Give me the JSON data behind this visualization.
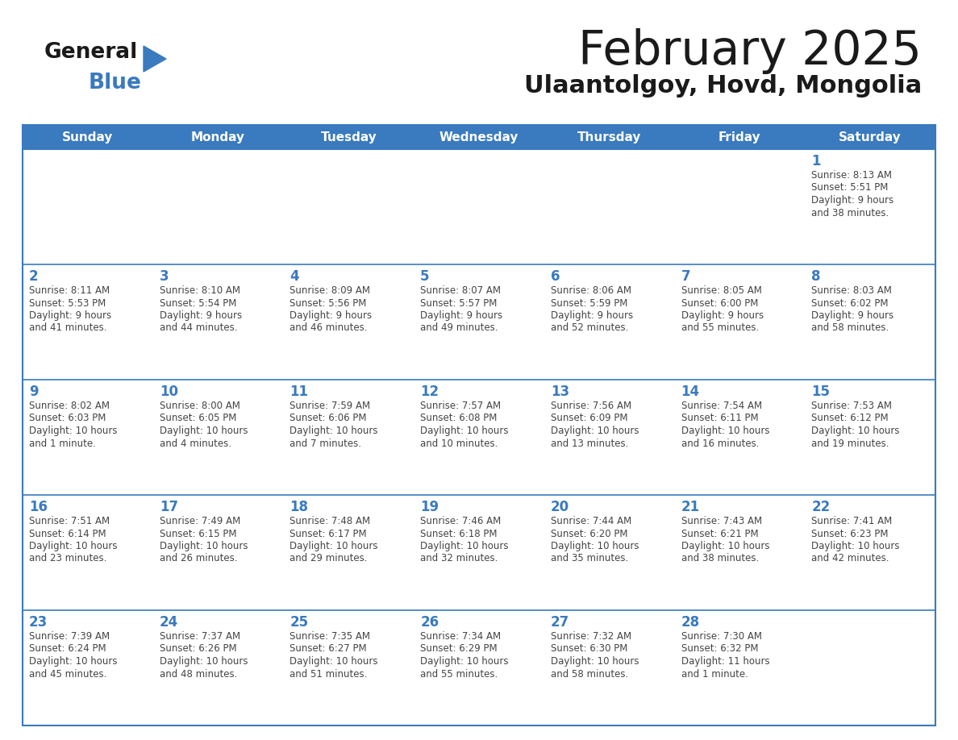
{
  "title": "February 2025",
  "subtitle": "Ulaantolgoy, Hovd, Mongolia",
  "days_of_week": [
    "Sunday",
    "Monday",
    "Tuesday",
    "Wednesday",
    "Thursday",
    "Friday",
    "Saturday"
  ],
  "header_bg": "#3a7abf",
  "header_text": "#ffffff",
  "cell_bg_odd": "#eef2f7",
  "cell_bg_even": "#ffffff",
  "separator_color": "#3a7abf",
  "day_number_color": "#3a7abf",
  "info_color": "#444444",
  "title_color": "#1a1a1a",
  "subtitle_color": "#1a1a1a",
  "logo_general_color": "#1a1a1a",
  "logo_blue_color": "#3a7abf",
  "weeks": [
    [
      {
        "day": null,
        "sunrise": null,
        "sunset": null,
        "daylight": null
      },
      {
        "day": null,
        "sunrise": null,
        "sunset": null,
        "daylight": null
      },
      {
        "day": null,
        "sunrise": null,
        "sunset": null,
        "daylight": null
      },
      {
        "day": null,
        "sunrise": null,
        "sunset": null,
        "daylight": null
      },
      {
        "day": null,
        "sunrise": null,
        "sunset": null,
        "daylight": null
      },
      {
        "day": null,
        "sunrise": null,
        "sunset": null,
        "daylight": null
      },
      {
        "day": 1,
        "sunrise": "8:13 AM",
        "sunset": "5:51 PM",
        "daylight": "9 hours\nand 38 minutes."
      }
    ],
    [
      {
        "day": 2,
        "sunrise": "8:11 AM",
        "sunset": "5:53 PM",
        "daylight": "9 hours\nand 41 minutes."
      },
      {
        "day": 3,
        "sunrise": "8:10 AM",
        "sunset": "5:54 PM",
        "daylight": "9 hours\nand 44 minutes."
      },
      {
        "day": 4,
        "sunrise": "8:09 AM",
        "sunset": "5:56 PM",
        "daylight": "9 hours\nand 46 minutes."
      },
      {
        "day": 5,
        "sunrise": "8:07 AM",
        "sunset": "5:57 PM",
        "daylight": "9 hours\nand 49 minutes."
      },
      {
        "day": 6,
        "sunrise": "8:06 AM",
        "sunset": "5:59 PM",
        "daylight": "9 hours\nand 52 minutes."
      },
      {
        "day": 7,
        "sunrise": "8:05 AM",
        "sunset": "6:00 PM",
        "daylight": "9 hours\nand 55 minutes."
      },
      {
        "day": 8,
        "sunrise": "8:03 AM",
        "sunset": "6:02 PM",
        "daylight": "9 hours\nand 58 minutes."
      }
    ],
    [
      {
        "day": 9,
        "sunrise": "8:02 AM",
        "sunset": "6:03 PM",
        "daylight": "10 hours\nand 1 minute."
      },
      {
        "day": 10,
        "sunrise": "8:00 AM",
        "sunset": "6:05 PM",
        "daylight": "10 hours\nand 4 minutes."
      },
      {
        "day": 11,
        "sunrise": "7:59 AM",
        "sunset": "6:06 PM",
        "daylight": "10 hours\nand 7 minutes."
      },
      {
        "day": 12,
        "sunrise": "7:57 AM",
        "sunset": "6:08 PM",
        "daylight": "10 hours\nand 10 minutes."
      },
      {
        "day": 13,
        "sunrise": "7:56 AM",
        "sunset": "6:09 PM",
        "daylight": "10 hours\nand 13 minutes."
      },
      {
        "day": 14,
        "sunrise": "7:54 AM",
        "sunset": "6:11 PM",
        "daylight": "10 hours\nand 16 minutes."
      },
      {
        "day": 15,
        "sunrise": "7:53 AM",
        "sunset": "6:12 PM",
        "daylight": "10 hours\nand 19 minutes."
      }
    ],
    [
      {
        "day": 16,
        "sunrise": "7:51 AM",
        "sunset": "6:14 PM",
        "daylight": "10 hours\nand 23 minutes."
      },
      {
        "day": 17,
        "sunrise": "7:49 AM",
        "sunset": "6:15 PM",
        "daylight": "10 hours\nand 26 minutes."
      },
      {
        "day": 18,
        "sunrise": "7:48 AM",
        "sunset": "6:17 PM",
        "daylight": "10 hours\nand 29 minutes."
      },
      {
        "day": 19,
        "sunrise": "7:46 AM",
        "sunset": "6:18 PM",
        "daylight": "10 hours\nand 32 minutes."
      },
      {
        "day": 20,
        "sunrise": "7:44 AM",
        "sunset": "6:20 PM",
        "daylight": "10 hours\nand 35 minutes."
      },
      {
        "day": 21,
        "sunrise": "7:43 AM",
        "sunset": "6:21 PM",
        "daylight": "10 hours\nand 38 minutes."
      },
      {
        "day": 22,
        "sunrise": "7:41 AM",
        "sunset": "6:23 PM",
        "daylight": "10 hours\nand 42 minutes."
      }
    ],
    [
      {
        "day": 23,
        "sunrise": "7:39 AM",
        "sunset": "6:24 PM",
        "daylight": "10 hours\nand 45 minutes."
      },
      {
        "day": 24,
        "sunrise": "7:37 AM",
        "sunset": "6:26 PM",
        "daylight": "10 hours\nand 48 minutes."
      },
      {
        "day": 25,
        "sunrise": "7:35 AM",
        "sunset": "6:27 PM",
        "daylight": "10 hours\nand 51 minutes."
      },
      {
        "day": 26,
        "sunrise": "7:34 AM",
        "sunset": "6:29 PM",
        "daylight": "10 hours\nand 55 minutes."
      },
      {
        "day": 27,
        "sunrise": "7:32 AM",
        "sunset": "6:30 PM",
        "daylight": "10 hours\nand 58 minutes."
      },
      {
        "day": 28,
        "sunrise": "7:30 AM",
        "sunset": "6:32 PM",
        "daylight": "11 hours\nand 1 minute."
      },
      {
        "day": null,
        "sunrise": null,
        "sunset": null,
        "daylight": null
      }
    ]
  ]
}
